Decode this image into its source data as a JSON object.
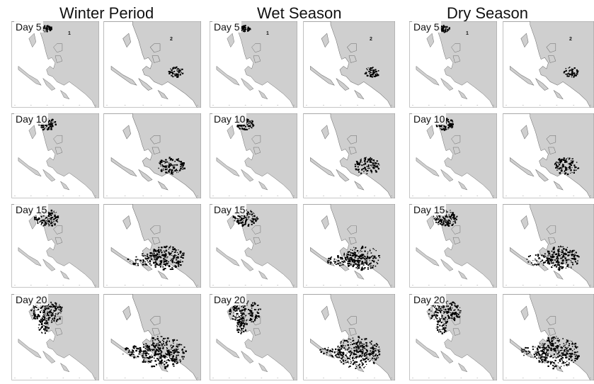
{
  "seasons": [
    {
      "title": "Winter Period"
    },
    {
      "title": "Wet Season"
    },
    {
      "title": "Dry Season"
    }
  ],
  "days": [
    "Day 5",
    "Day 10",
    "Day 15",
    "Day 20"
  ],
  "sites": [
    "1",
    "2"
  ],
  "colors": {
    "land": "#cfcfcf",
    "coast": "#6a6a6a",
    "water": "#ffffff",
    "particles": "#000000"
  }
}
